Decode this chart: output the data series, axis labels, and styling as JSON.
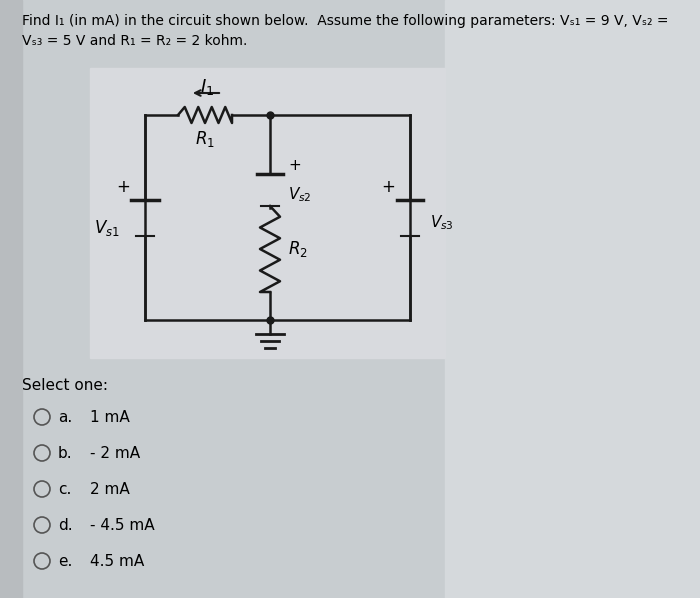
{
  "bg_outer": "#c8cdd0",
  "bg_circuit": "#d2d5d8",
  "bg_right": "#dce0e3",
  "wire_color": "#1a1a1a",
  "title_line1": "Find I₁ (in mA) in the circuit shown below.  Assume the following parameters: Vₛ₁ = 9 V, Vₛ₂ =",
  "title_line2": "Vₛ₃ = 5 V and R₁ = R₂ = 2 kohm.",
  "select_one": "Select one:",
  "options": [
    [
      "a.",
      "1 mA"
    ],
    [
      "b.",
      "- 2 mA"
    ],
    [
      "c.",
      "2 mA"
    ],
    [
      "d.",
      "- 4.5 mA"
    ],
    [
      "e.",
      "4.5 mA"
    ]
  ]
}
